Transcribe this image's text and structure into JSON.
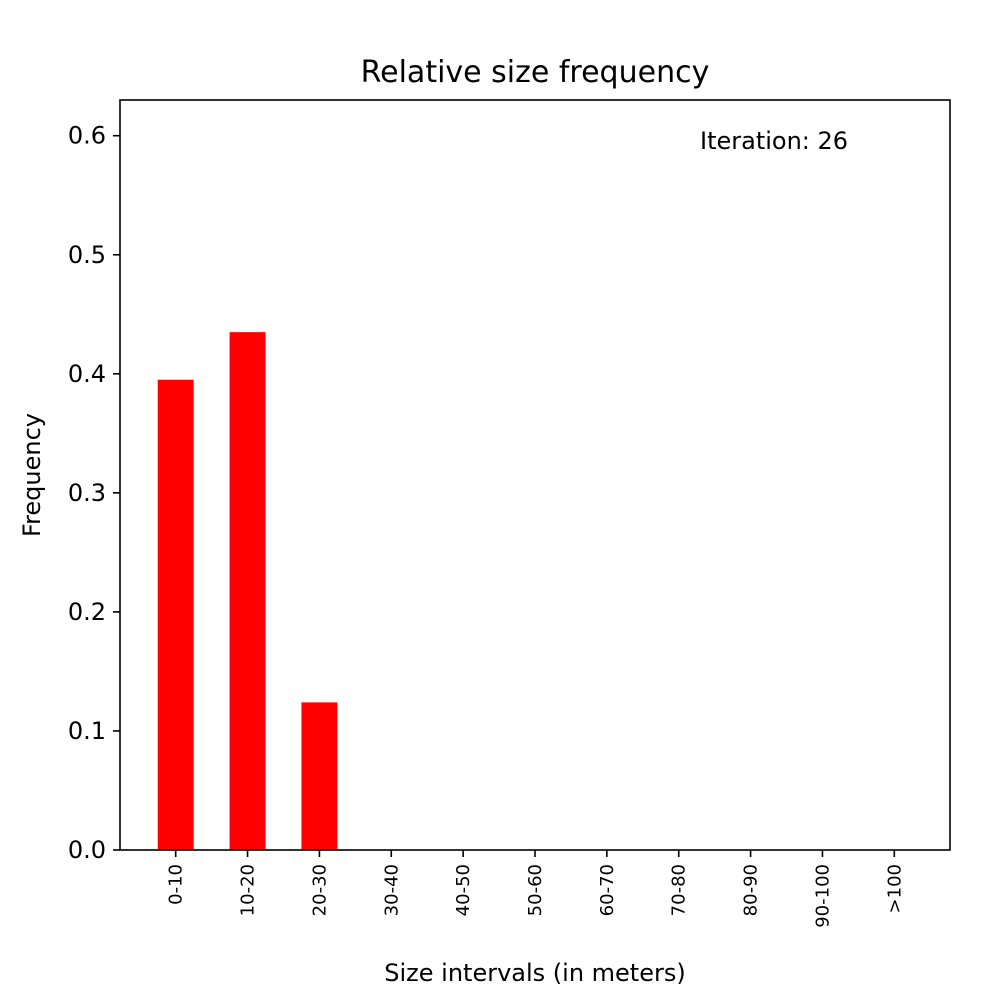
{
  "chart_data": {
    "type": "bar",
    "title": "Relative size frequency",
    "xlabel": "Size intervals (in meters)",
    "ylabel": "Frequency",
    "categories": [
      "0-10",
      "10-20",
      "20-30",
      "30-40",
      "40-50",
      "50-60",
      "60-70",
      "70-80",
      "80-90",
      "90-100",
      ">100"
    ],
    "values": [
      0.395,
      0.435,
      0.124,
      0,
      0,
      0,
      0,
      0,
      0,
      0,
      0
    ],
    "ylim": [
      0,
      0.63
    ],
    "yticks": [
      0.0,
      0.1,
      0.2,
      0.3,
      0.4,
      0.5,
      0.6
    ],
    "ytick_labels": [
      "0.0",
      "0.1",
      "0.2",
      "0.3",
      "0.4",
      "0.5",
      "0.6"
    ],
    "annotation": "Iteration: 26",
    "bar_color": "#ff0000",
    "grid": false
  }
}
